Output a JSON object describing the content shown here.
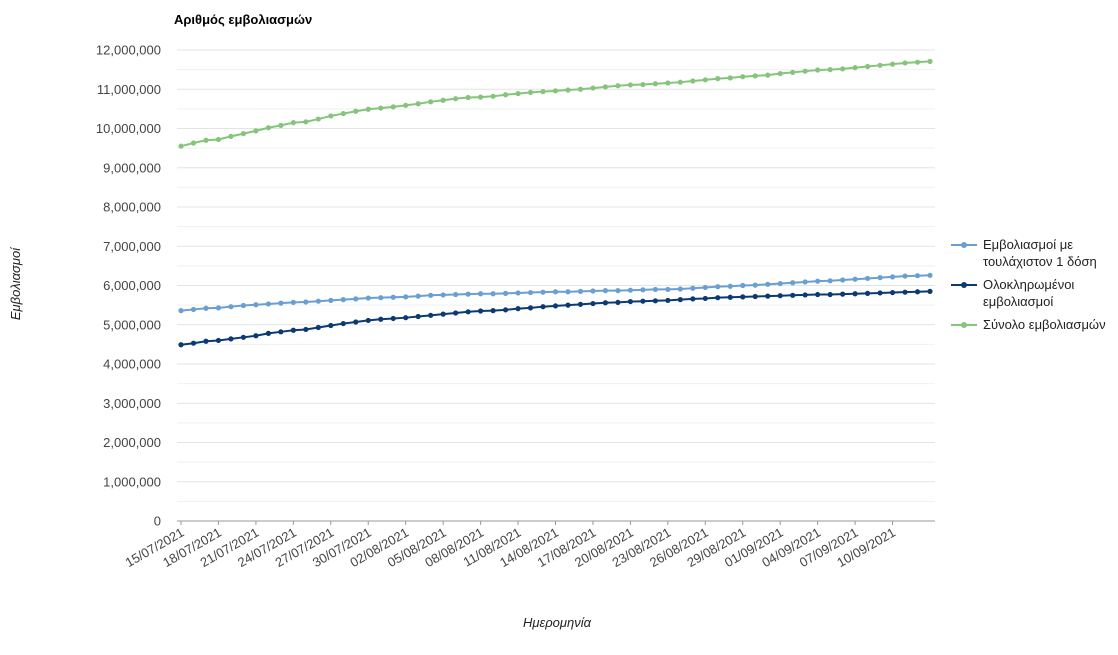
{
  "chart_data": {
    "type": "line",
    "title": "Αριθμός εμβολιασμών",
    "xlabel": "Ημερομηνία",
    "ylabel": "Εμβολιασμοί",
    "ylim": [
      0,
      12000000
    ],
    "y_ticks": [
      0,
      1000000,
      2000000,
      3000000,
      4000000,
      5000000,
      6000000,
      7000000,
      8000000,
      9000000,
      10000000,
      11000000,
      12000000
    ],
    "y_tick_labels": [
      "0",
      "1,000,000",
      "2,000,000",
      "3,000,000",
      "4,000,000",
      "5,000,000",
      "6,000,000",
      "7,000,000",
      "8,000,000",
      "9,000,000",
      "10,000,000",
      "11,000,000",
      "12,000,000"
    ],
    "x": [
      "15/07/2021",
      "16/07/2021",
      "17/07/2021",
      "18/07/2021",
      "19/07/2021",
      "20/07/2021",
      "21/07/2021",
      "22/07/2021",
      "23/07/2021",
      "24/07/2021",
      "25/07/2021",
      "26/07/2021",
      "27/07/2021",
      "28/07/2021",
      "29/07/2021",
      "30/07/2021",
      "31/07/2021",
      "01/08/2021",
      "02/08/2021",
      "03/08/2021",
      "04/08/2021",
      "05/08/2021",
      "06/08/2021",
      "07/08/2021",
      "08/08/2021",
      "09/08/2021",
      "10/08/2021",
      "11/08/2021",
      "12/08/2021",
      "13/08/2021",
      "14/08/2021",
      "15/08/2021",
      "16/08/2021",
      "17/08/2021",
      "18/08/2021",
      "19/08/2021",
      "20/08/2021",
      "21/08/2021",
      "22/08/2021",
      "23/08/2021",
      "24/08/2021",
      "25/08/2021",
      "26/08/2021",
      "27/08/2021",
      "28/08/2021",
      "29/08/2021",
      "30/08/2021",
      "31/08/2021",
      "01/09/2021",
      "02/09/2021",
      "03/09/2021",
      "04/09/2021",
      "05/09/2021",
      "06/09/2021",
      "07/09/2021",
      "08/09/2021",
      "09/09/2021",
      "10/09/2021",
      "11/09/2021",
      "12/09/2021",
      "13/09/2021"
    ],
    "x_tick_labels": [
      "15/07/2021",
      "18/07/2021",
      "21/07/2021",
      "24/07/2021",
      "27/07/2021",
      "30/07/2021",
      "02/08/2021",
      "05/08/2021",
      "08/08/2021",
      "11/08/2021",
      "14/08/2021",
      "17/08/2021",
      "20/08/2021",
      "23/08/2021",
      "26/08/2021",
      "29/08/2021",
      "01/09/2021",
      "04/09/2021",
      "07/09/2021",
      "10/09/2021"
    ],
    "series": [
      {
        "name": "Εμβολιασμοί με τουλάχιστον 1 δόση",
        "color": "#6a9fd1",
        "values": [
          5360000,
          5390000,
          5420000,
          5430000,
          5460000,
          5490000,
          5510000,
          5530000,
          5550000,
          5570000,
          5580000,
          5600000,
          5620000,
          5640000,
          5660000,
          5680000,
          5690000,
          5700000,
          5710000,
          5730000,
          5750000,
          5760000,
          5770000,
          5780000,
          5790000,
          5790000,
          5800000,
          5810000,
          5820000,
          5830000,
          5840000,
          5840000,
          5850000,
          5860000,
          5870000,
          5870000,
          5880000,
          5890000,
          5900000,
          5900000,
          5910000,
          5930000,
          5950000,
          5970000,
          5980000,
          6000000,
          6010000,
          6030000,
          6050000,
          6070000,
          6090000,
          6110000,
          6120000,
          6140000,
          6160000,
          6180000,
          6200000,
          6220000,
          6240000,
          6250000,
          6260000
        ]
      },
      {
        "name": "Ολοκληρωμένοι εμβολιασμοί",
        "color": "#0b3a73",
        "values": [
          4490000,
          4530000,
          4580000,
          4600000,
          4640000,
          4680000,
          4720000,
          4780000,
          4820000,
          4860000,
          4880000,
          4930000,
          4980000,
          5030000,
          5070000,
          5110000,
          5140000,
          5160000,
          5180000,
          5210000,
          5240000,
          5270000,
          5300000,
          5330000,
          5350000,
          5360000,
          5380000,
          5410000,
          5430000,
          5460000,
          5480000,
          5500000,
          5520000,
          5540000,
          5560000,
          5570000,
          5590000,
          5600000,
          5610000,
          5620000,
          5640000,
          5660000,
          5670000,
          5690000,
          5700000,
          5710000,
          5720000,
          5730000,
          5740000,
          5750000,
          5760000,
          5770000,
          5770000,
          5780000,
          5790000,
          5800000,
          5810000,
          5820000,
          5830000,
          5840000,
          5850000
        ]
      },
      {
        "name": "Σύνολο εμβολιασμών",
        "color": "#86c47c",
        "values": [
          9550000,
          9630000,
          9700000,
          9720000,
          9800000,
          9870000,
          9940000,
          10020000,
          10080000,
          10150000,
          10170000,
          10240000,
          10320000,
          10380000,
          10440000,
          10490000,
          10520000,
          10550000,
          10590000,
          10630000,
          10680000,
          10720000,
          10760000,
          10790000,
          10800000,
          10820000,
          10860000,
          10890000,
          10920000,
          10940000,
          10960000,
          10980000,
          11000000,
          11030000,
          11060000,
          11090000,
          11110000,
          11120000,
          11140000,
          11160000,
          11180000,
          11210000,
          11240000,
          11270000,
          11290000,
          11320000,
          11340000,
          11360000,
          11400000,
          11430000,
          11460000,
          11490000,
          11500000,
          11520000,
          11550000,
          11580000,
          11610000,
          11640000,
          11670000,
          11690000,
          11710000
        ]
      }
    ],
    "legend": [
      {
        "lines": [
          "Εμβολιασμοί με",
          "τουλάχιστον 1 δόση"
        ],
        "color": "#6a9fd1"
      },
      {
        "lines": [
          "Ολοκληρωμένοι",
          "εμβολιασμοί"
        ],
        "color": "#0b3a73"
      },
      {
        "lines": [
          "Σύνολο εμβολιασμών"
        ],
        "color": "#86c47c"
      }
    ],
    "legend_position": "right",
    "grid": true
  }
}
